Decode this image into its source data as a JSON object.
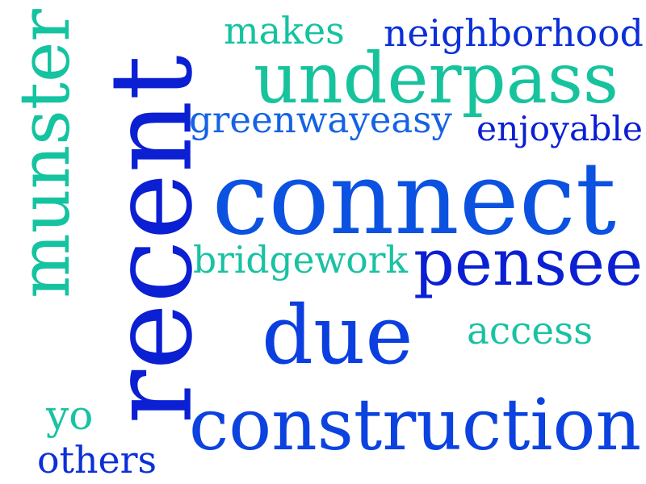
{
  "words": [
    {
      "text": "makes",
      "color": "#14c3a0",
      "rotated": false
    },
    {
      "text": "neighborhood",
      "color": "#0b2fd8",
      "rotated": false
    },
    {
      "text": "underpass",
      "color": "#17c39d",
      "rotated": false
    },
    {
      "text": "greenwayeasy",
      "color": "#1563e3",
      "rotated": false
    },
    {
      "text": "enjoyable",
      "color": "#0b1fd3",
      "rotated": false
    },
    {
      "text": "connect",
      "color": "#0b52e0",
      "rotated": false
    },
    {
      "text": "munster",
      "color": "#14c3a0",
      "rotated": true
    },
    {
      "text": "recent",
      "color": "#0b1fd3",
      "rotated": true
    },
    {
      "text": "bridgework",
      "color": "#19c2a2",
      "rotated": false
    },
    {
      "text": "pensee",
      "color": "#0b1fd3",
      "rotated": false
    },
    {
      "text": "due",
      "color": "#0b3fe0",
      "rotated": false
    },
    {
      "text": "access",
      "color": "#19c2a2",
      "rotated": false
    },
    {
      "text": "yo",
      "color": "#19c2a2",
      "rotated": false
    },
    {
      "text": "construction",
      "color": "#0b42e0",
      "rotated": false
    },
    {
      "text": "others",
      "color": "#0b2fd8",
      "rotated": false
    }
  ]
}
